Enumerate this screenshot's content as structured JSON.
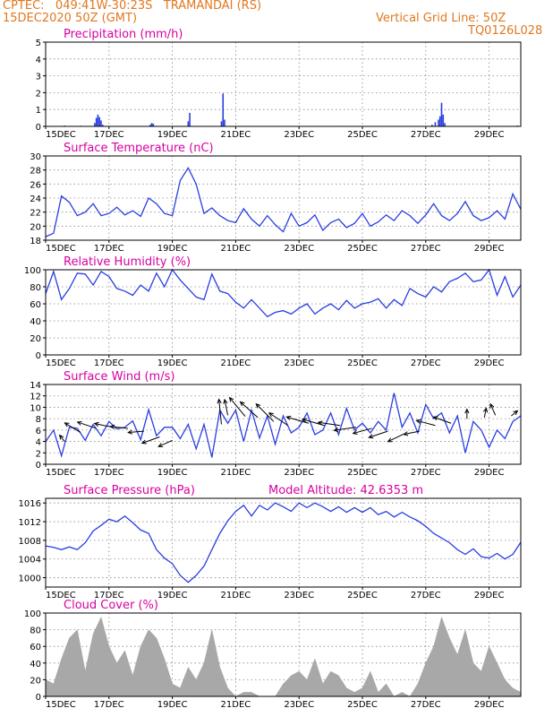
{
  "header": {
    "line1": "CPTEC:   049:41W-30:23S   TRAMANDAI (RS)",
    "line2": "15DEC2020 50Z (GMT)",
    "grid_note": "Vertical Grid Line: 50Z",
    "code": "TQ0126L028"
  },
  "model_altitude": "Model Altitude: 42.6353 m",
  "x_ticks": [
    "15DEC",
    "17DEC",
    "19DEC",
    "21DEC",
    "23DEC",
    "25DEC",
    "27DEC",
    "29DEC"
  ],
  "x_tick_days": [
    0,
    2,
    4,
    6,
    8,
    10,
    12,
    14
  ],
  "x_range": [
    0,
    15
  ],
  "colors": {
    "title": "#d800a0",
    "header": "#e07820",
    "line": "#2a3ee0",
    "cloud": "#a8a8a8",
    "grid": "#888888",
    "arrow": "#000000"
  },
  "chart_data": [
    {
      "type": "bar",
      "title": "Precipitation (mm/h)",
      "ylim": [
        0,
        5
      ],
      "yticks": [
        0,
        1,
        2,
        3,
        4,
        5
      ],
      "x": [
        0.6,
        1.1,
        1.55,
        1.6,
        1.65,
        1.7,
        1.75,
        1.8,
        3.3,
        3.35,
        3.4,
        4.5,
        4.55,
        5.55,
        5.6,
        5.65,
        7.2,
        8.3,
        9.4,
        12.2,
        12.3,
        12.4,
        12.45,
        12.5,
        12.55,
        12.6,
        14.9
      ],
      "values": [
        0.05,
        0.04,
        0.2,
        0.5,
        0.7,
        0.55,
        0.35,
        0.1,
        0.1,
        0.2,
        0.15,
        0.3,
        0.8,
        0.3,
        1.95,
        0.4,
        0.02,
        0.02,
        0.03,
        0.1,
        0.25,
        0.4,
        0.6,
        1.4,
        0.7,
        0.2,
        0.05
      ]
    },
    {
      "type": "line",
      "title": "Surface Temperature (nC)",
      "ylim": [
        18,
        30
      ],
      "yticks": [
        18,
        20,
        22,
        24,
        26,
        28,
        30
      ],
      "x": [
        0,
        0.25,
        0.5,
        0.75,
        1.0,
        1.25,
        1.5,
        1.75,
        2.0,
        2.25,
        2.5,
        2.75,
        3.0,
        3.25,
        3.5,
        3.75,
        4.0,
        4.25,
        4.5,
        4.75,
        5.0,
        5.25,
        5.5,
        5.75,
        6.0,
        6.25,
        6.5,
        6.75,
        7.0,
        7.25,
        7.5,
        7.75,
        8.0,
        8.25,
        8.5,
        8.75,
        9.0,
        9.25,
        9.5,
        9.75,
        10.0,
        10.25,
        10.5,
        10.75,
        11.0,
        11.25,
        11.5,
        11.75,
        12.0,
        12.25,
        12.5,
        12.75,
        13.0,
        13.25,
        13.5,
        13.75,
        14.0,
        14.25,
        14.5,
        14.75,
        15.0
      ],
      "values": [
        18.5,
        19.0,
        24.3,
        23.4,
        21.5,
        22.0,
        23.2,
        21.5,
        21.8,
        22.7,
        21.6,
        22.2,
        21.4,
        24.0,
        23.2,
        21.8,
        21.5,
        26.5,
        28.3,
        26.0,
        21.8,
        22.6,
        21.5,
        20.8,
        20.5,
        22.5,
        21.0,
        20.0,
        21.5,
        20.2,
        19.2,
        21.8,
        20.0,
        20.5,
        21.6,
        19.4,
        20.5,
        21.0,
        19.8,
        20.4,
        21.8,
        20.0,
        20.6,
        21.6,
        20.8,
        22.2,
        21.5,
        20.4,
        21.6,
        23.2,
        21.5,
        20.8,
        21.8,
        23.5,
        21.5,
        20.8,
        21.2,
        22.2,
        21.0,
        24.6,
        22.4
      ]
    },
    {
      "type": "line",
      "title": "Relative Humidity (%)",
      "ylim": [
        0,
        100
      ],
      "yticks": [
        0,
        20,
        40,
        60,
        80,
        100
      ],
      "x": [
        0,
        0.25,
        0.5,
        0.75,
        1.0,
        1.25,
        1.5,
        1.75,
        2.0,
        2.25,
        2.5,
        2.75,
        3.0,
        3.25,
        3.5,
        3.75,
        4.0,
        4.25,
        4.5,
        4.75,
        5.0,
        5.25,
        5.5,
        5.75,
        6.0,
        6.25,
        6.5,
        6.75,
        7.0,
        7.25,
        7.5,
        7.75,
        8.0,
        8.25,
        8.5,
        8.75,
        9.0,
        9.25,
        9.5,
        9.75,
        10.0,
        10.25,
        10.5,
        10.75,
        11.0,
        11.25,
        11.5,
        11.75,
        12.0,
        12.25,
        12.5,
        12.75,
        13.0,
        13.25,
        13.5,
        13.75,
        14.0,
        14.25,
        14.5,
        14.75,
        15.0
      ],
      "values": [
        72,
        98,
        65,
        78,
        96,
        95,
        82,
        98,
        92,
        78,
        75,
        70,
        82,
        75,
        96,
        80,
        100,
        88,
        78,
        68,
        65,
        95,
        75,
        72,
        62,
        55,
        65,
        55,
        45,
        50,
        52,
        48,
        55,
        60,
        48,
        55,
        60,
        53,
        64,
        55,
        60,
        62,
        66,
        55,
        65,
        58,
        78,
        72,
        68,
        80,
        74,
        86,
        90,
        96,
        86,
        88,
        100,
        70,
        92,
        68,
        82
      ]
    },
    {
      "type": "line",
      "title": "Surface Wind (m/s)",
      "ylim": [
        0,
        14
      ],
      "yticks": [
        0,
        2,
        4,
        6,
        8,
        10,
        12,
        14
      ],
      "x": [
        0,
        0.25,
        0.5,
        0.75,
        1.0,
        1.25,
        1.5,
        1.75,
        2.0,
        2.25,
        2.5,
        2.75,
        3.0,
        3.25,
        3.5,
        3.75,
        4.0,
        4.25,
        4.5,
        4.75,
        5.0,
        5.25,
        5.5,
        5.75,
        6.0,
        6.25,
        6.5,
        6.75,
        7.0,
        7.25,
        7.5,
        7.75,
        8.0,
        8.25,
        8.5,
        8.75,
        9.0,
        9.25,
        9.5,
        9.75,
        10.0,
        10.25,
        10.5,
        10.75,
        11.0,
        11.25,
        11.5,
        11.75,
        12.0,
        12.25,
        12.5,
        12.75,
        13.0,
        13.25,
        13.5,
        13.75,
        14.0,
        14.25,
        14.5,
        14.75,
        15.0
      ],
      "values": [
        4.0,
        6.0,
        1.5,
        6.5,
        6.3,
        4.2,
        7.0,
        5.0,
        7.5,
        6.2,
        6.5,
        7.6,
        4.3,
        9.6,
        5.0,
        6.5,
        6.5,
        4.5,
        7.0,
        2.7,
        7.0,
        1.2,
        9.5,
        7.2,
        9.5,
        4.0,
        9.5,
        4.6,
        8.5,
        3.5,
        8.5,
        5.5,
        6.5,
        9.0,
        5.2,
        6.0,
        9.0,
        5.2,
        9.8,
        6.0,
        7.2,
        5.5,
        7.5,
        6.0,
        12.5,
        6.5,
        9.0,
        5.5,
        10.5,
        8.0,
        9.0,
        5.5,
        8.5,
        2.0,
        7.5,
        6.0,
        3.0,
        6.0,
        4.5,
        7.5,
        8.5
      ]
    },
    {
      "type": "line",
      "title": "Surface Pressure (hPa)",
      "ylim": [
        998,
        1017
      ],
      "yticks": [
        1000,
        1004,
        1008,
        1012,
        1016
      ],
      "x": [
        0,
        0.25,
        0.5,
        0.75,
        1.0,
        1.25,
        1.5,
        1.75,
        2.0,
        2.25,
        2.5,
        2.75,
        3.0,
        3.25,
        3.5,
        3.75,
        4.0,
        4.25,
        4.5,
        4.75,
        5.0,
        5.25,
        5.5,
        5.75,
        6.0,
        6.25,
        6.5,
        6.75,
        7.0,
        7.25,
        7.5,
        7.75,
        8.0,
        8.25,
        8.5,
        8.75,
        9.0,
        9.25,
        9.5,
        9.75,
        10.0,
        10.25,
        10.5,
        10.75,
        11.0,
        11.25,
        11.5,
        11.75,
        12.0,
        12.25,
        12.5,
        12.75,
        13.0,
        13.25,
        13.5,
        13.75,
        14.0,
        14.25,
        14.5,
        14.75,
        15.0
      ],
      "values": [
        1006.8,
        1006.5,
        1006.0,
        1006.6,
        1006.0,
        1007.5,
        1010.0,
        1011.2,
        1012.5,
        1012.0,
        1013.2,
        1011.8,
        1010.2,
        1009.5,
        1006.0,
        1004.2,
        1003.0,
        1000.5,
        999.0,
        1000.5,
        1002.5,
        1006.0,
        1009.5,
        1012.2,
        1014.2,
        1015.5,
        1013.2,
        1015.5,
        1014.5,
        1016.0,
        1015.2,
        1014.2,
        1016.0,
        1015.0,
        1016.0,
        1015.2,
        1014.2,
        1015.2,
        1014.0,
        1015.0,
        1014.0,
        1015.0,
        1013.5,
        1014.2,
        1013.0,
        1014.0,
        1013.0,
        1012.2,
        1011.0,
        1009.5,
        1008.5,
        1007.5,
        1006.0,
        1005.0,
        1006.2,
        1004.5,
        1004.2,
        1005.2,
        1004.0,
        1005.0,
        1007.6
      ]
    },
    {
      "type": "area",
      "title": "Cloud Cover (%)",
      "ylim": [
        0,
        100
      ],
      "yticks": [
        0,
        20,
        40,
        60,
        80,
        100
      ],
      "x": [
        0,
        0.25,
        0.5,
        0.75,
        1.0,
        1.25,
        1.5,
        1.75,
        2.0,
        2.25,
        2.5,
        2.75,
        3.0,
        3.25,
        3.5,
        3.75,
        4.0,
        4.25,
        4.5,
        4.75,
        5.0,
        5.25,
        5.5,
        5.75,
        6.0,
        6.25,
        6.5,
        6.75,
        7.0,
        7.25,
        7.5,
        7.75,
        8.0,
        8.25,
        8.5,
        8.75,
        9.0,
        9.25,
        9.5,
        9.75,
        10.0,
        10.25,
        10.5,
        10.75,
        11.0,
        11.25,
        11.5,
        11.75,
        12.0,
        12.25,
        12.5,
        12.75,
        13.0,
        13.25,
        13.5,
        13.75,
        14.0,
        14.25,
        14.5,
        14.75,
        15.0
      ],
      "values": [
        20,
        15,
        45,
        70,
        80,
        30,
        75,
        95,
        60,
        40,
        55,
        25,
        60,
        80,
        70,
        45,
        15,
        10,
        35,
        20,
        40,
        80,
        35,
        10,
        0,
        5,
        5,
        0,
        0,
        0,
        15,
        25,
        30,
        20,
        45,
        15,
        30,
        25,
        10,
        5,
        10,
        30,
        5,
        15,
        0,
        5,
        0,
        15,
        40,
        60,
        95,
        70,
        50,
        80,
        40,
        30,
        60,
        40,
        20,
        10,
        5
      ]
    }
  ],
  "wind_vectors": {
    "x": [
      0.6,
      1.1,
      1.6,
      2.1,
      2.6,
      3.1,
      3.6,
      4.0,
      5.55,
      5.75,
      6.3,
      6.7,
      7.2,
      7.65,
      8.3,
      8.8,
      9.3,
      9.8,
      10.3,
      10.8,
      11.3,
      11.8,
      12.3,
      12.8,
      13.3,
      13.85,
      14.2,
      14.7
    ],
    "y": [
      4.0,
      5.6,
      6.3,
      6.5,
      6.3,
      5.8,
      4.8,
      4.2,
      7.0,
      8.6,
      8.4,
      8.2,
      7.5,
      6.8,
      7.2,
      6.8,
      6.8,
      6.5,
      6.3,
      5.8,
      5.3,
      5.8,
      6.8,
      7.2,
      8.0,
      8.2,
      8.6,
      8.5
    ],
    "u": [
      -0.8,
      -2.5,
      -3.0,
      -2.8,
      -2.8,
      -2.5,
      -2.8,
      -2.2,
      -0.4,
      -0.5,
      -2.5,
      -2.8,
      -2.8,
      -3.0,
      -3.5,
      -3.5,
      -3.5,
      -3.5,
      -3.0,
      -3.0,
      -2.5,
      -2.5,
      -3.0,
      -2.8,
      0.0,
      0.3,
      -0.8,
      1.0
    ],
    "v": [
      1.0,
      1.5,
      1.0,
      0.6,
      0.3,
      -0.2,
      -1.0,
      -1.0,
      4.0,
      2.5,
      3.0,
      2.5,
      2.8,
      2.0,
      1.0,
      1.0,
      0.5,
      -0.5,
      -0.8,
      -1.0,
      -1.2,
      -0.5,
      0.8,
      1.0,
      1.5,
      1.5,
      1.8,
      0.8
    ]
  }
}
